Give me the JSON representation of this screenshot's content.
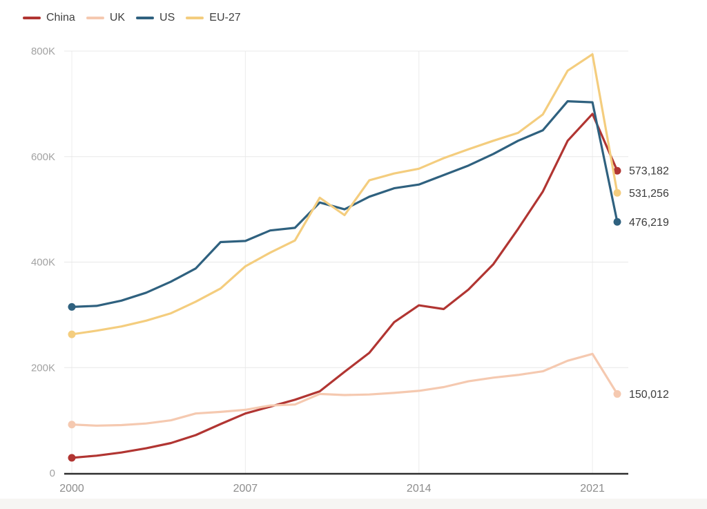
{
  "chart_data": {
    "type": "line",
    "title": "",
    "xlabel": "",
    "ylabel": "",
    "grid": true,
    "legend_position": "top-left",
    "ylim": [
      0,
      800000
    ],
    "x": [
      2000,
      2001,
      2002,
      2003,
      2004,
      2005,
      2006,
      2007,
      2008,
      2009,
      2010,
      2011,
      2012,
      2013,
      2014,
      2015,
      2016,
      2017,
      2018,
      2019,
      2020,
      2021,
      2022
    ],
    "x_ticks": [
      {
        "value": 2000,
        "label": "2000"
      },
      {
        "value": 2007,
        "label": "2007"
      },
      {
        "value": 2014,
        "label": "2014"
      },
      {
        "value": 2021,
        "label": "2021"
      }
    ],
    "y_ticks": [
      {
        "value": 0,
        "label": "0"
      },
      {
        "value": 200000,
        "label": "200K"
      },
      {
        "value": 400000,
        "label": "400K"
      },
      {
        "value": 600000,
        "label": "600K"
      },
      {
        "value": 800000,
        "label": "800K"
      }
    ],
    "series": [
      {
        "name": "China",
        "color": "#b13532",
        "end_label": "573,182",
        "values": [
          29000,
          33000,
          39000,
          47000,
          57000,
          72000,
          93000,
          113000,
          126000,
          139000,
          155000,
          192000,
          228000,
          286000,
          318000,
          311000,
          348000,
          396000,
          463000,
          534000,
          630000,
          681000,
          573182
        ]
      },
      {
        "name": "UK",
        "color": "#f5c9b0",
        "end_label": "150,012",
        "values": [
          92000,
          90000,
          91000,
          94000,
          100000,
          113000,
          116000,
          120000,
          128000,
          130000,
          150000,
          148000,
          149000,
          152000,
          156000,
          163000,
          174000,
          181000,
          186000,
          193000,
          213000,
          226000,
          150012
        ]
      },
      {
        "name": "US",
        "color": "#2f617f",
        "end_label": "476,219",
        "values": [
          315000,
          317000,
          327000,
          342000,
          363000,
          388000,
          438000,
          440000,
          460000,
          465000,
          513000,
          500000,
          524000,
          540000,
          547000,
          565000,
          583000,
          605000,
          630000,
          650000,
          705000,
          703000,
          476219
        ]
      },
      {
        "name": "EU-27",
        "color": "#f4cd7e",
        "end_label": "531,256",
        "values": [
          263000,
          270000,
          278000,
          289000,
          303000,
          325000,
          350000,
          392000,
          418000,
          441000,
          522000,
          489000,
          555000,
          568000,
          577000,
          597000,
          614000,
          630000,
          645000,
          680000,
          763000,
          794000,
          531256
        ]
      }
    ],
    "colors": {
      "gridline": "#e8e8e8",
      "axis": "#2f2f2f",
      "ytick_text": "#a2a2a2",
      "xtick_text": "#8d8d8d",
      "end_label_text": "#3b3b3b",
      "legend_text": "#3f3f3f",
      "background": "#ffffff"
    }
  }
}
